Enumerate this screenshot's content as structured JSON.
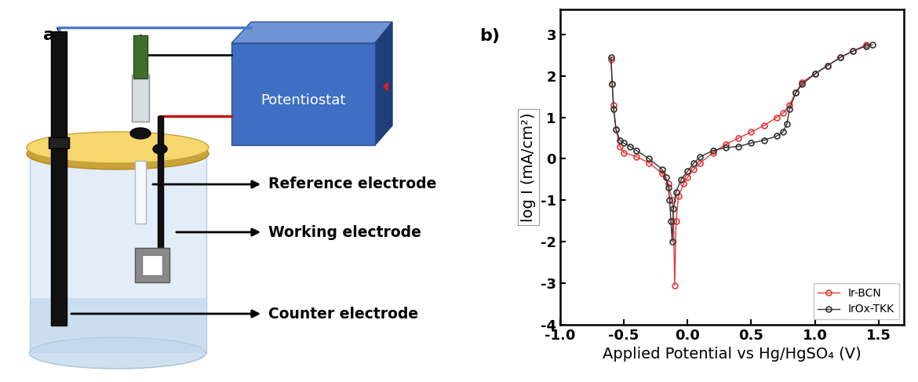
{
  "diagram": {
    "panel_label": "a)",
    "instrument": {
      "label": "Potentiostat"
    },
    "electrodes": [
      {
        "label": "Reference electrode"
      },
      {
        "label": "Working electrode"
      },
      {
        "label": "Counter electrode"
      }
    ]
  },
  "chart_data": {
    "type": "scatter",
    "annotations": [
      "b)"
    ],
    "xlabel": "Applied Potential vs Hg/HgSO₄ (V)",
    "ylabel": "log I (mA/cm²)",
    "xlim": [
      -1.0,
      1.7
    ],
    "xticks": [
      -1.0,
      -0.5,
      0.0,
      0.5,
      1.0,
      1.5
    ],
    "ylim": [
      -4,
      3.6
    ],
    "yticks": [
      -4,
      -3,
      -2,
      -1,
      0,
      1,
      2,
      3
    ],
    "legend": "lower right",
    "grid": false,
    "series": [
      {
        "name": "Ir-BCN",
        "color": "#e8393a",
        "marker": "circle",
        "line_style": "solid",
        "x": [
          -0.6,
          -0.59,
          -0.58,
          -0.56,
          -0.53,
          -0.5,
          -0.4,
          -0.3,
          -0.2,
          -0.15,
          -0.12,
          -0.11,
          -0.1,
          -0.09,
          -0.07,
          -0.03,
          0.0,
          0.05,
          0.1,
          0.2,
          0.3,
          0.4,
          0.5,
          0.6,
          0.7,
          0.75,
          0.8,
          0.85,
          0.9,
          1.0,
          1.1,
          1.2,
          1.3,
          1.4
        ],
        "values": [
          2.4,
          1.8,
          1.3,
          0.7,
          0.3,
          0.15,
          0.05,
          -0.1,
          -0.35,
          -0.6,
          -1.0,
          -1.5,
          -3.05,
          -1.5,
          -0.9,
          -0.6,
          -0.45,
          -0.25,
          -0.1,
          0.15,
          0.35,
          0.5,
          0.65,
          0.8,
          1.0,
          1.1,
          1.3,
          1.6,
          1.85,
          2.05,
          2.25,
          2.45,
          2.6,
          2.75
        ]
      },
      {
        "name": "IrOx-TKK",
        "color": "#333333",
        "marker": "circle",
        "line_style": "solid",
        "x": [
          -0.6,
          -0.59,
          -0.58,
          -0.56,
          -0.53,
          -0.5,
          -0.45,
          -0.4,
          -0.3,
          -0.2,
          -0.17,
          -0.15,
          -0.14,
          -0.13,
          -0.12,
          -0.11,
          -0.09,
          -0.05,
          0.0,
          0.05,
          0.1,
          0.2,
          0.3,
          0.4,
          0.5,
          0.6,
          0.7,
          0.75,
          0.78,
          0.8,
          0.85,
          0.9,
          1.0,
          1.1,
          1.2,
          1.3,
          1.4,
          1.45
        ],
        "values": [
          2.45,
          1.8,
          1.2,
          0.7,
          0.45,
          0.38,
          0.3,
          0.2,
          0.0,
          -0.25,
          -0.45,
          -0.7,
          -1.0,
          -1.5,
          -2.0,
          -1.2,
          -0.8,
          -0.5,
          -0.3,
          -0.1,
          0.05,
          0.2,
          0.27,
          0.3,
          0.38,
          0.45,
          0.55,
          0.65,
          0.85,
          1.2,
          1.6,
          1.8,
          2.05,
          2.25,
          2.45,
          2.6,
          2.72,
          2.75
        ]
      }
    ]
  }
}
